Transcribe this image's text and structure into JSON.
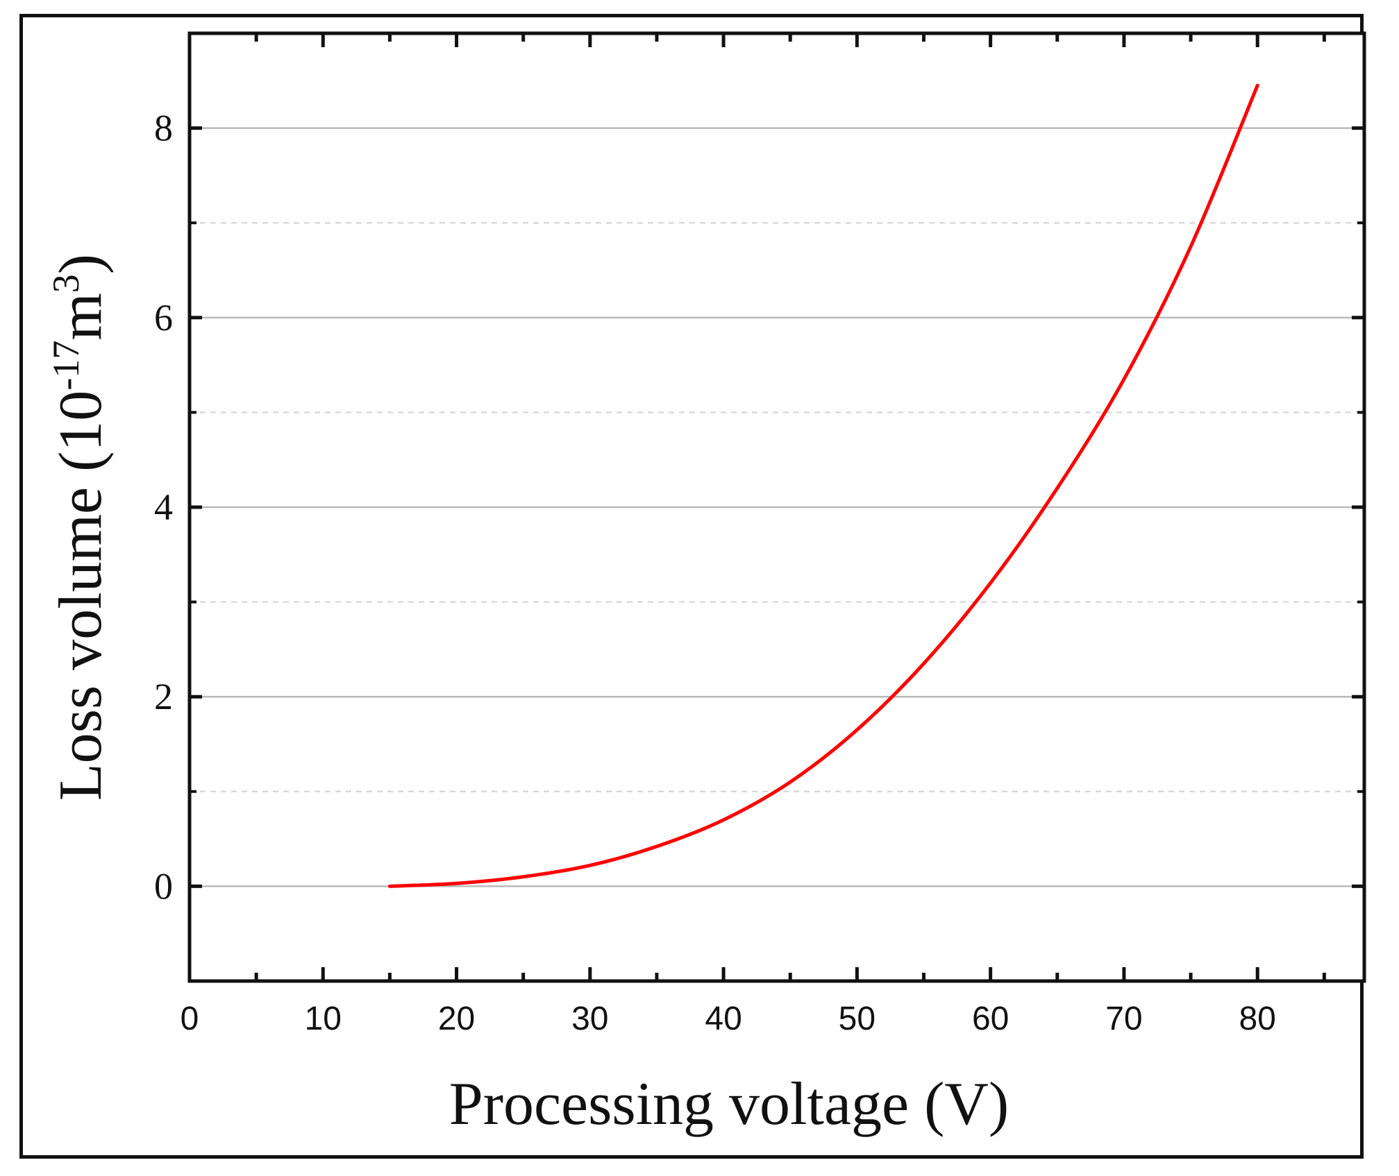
{
  "chart_data": {
    "type": "line",
    "title": "",
    "xlabel": "Processing voltage (V)",
    "ylabel": {
      "prefix": "Loss volume (10",
      "exponent1": "-17",
      "unit": "m",
      "exponent2": "3",
      "suffix": ")"
    },
    "xlim": [
      0,
      88
    ],
    "ylim": [
      -1,
      9
    ],
    "xticks": [
      0,
      10,
      20,
      30,
      40,
      50,
      60,
      70,
      80
    ],
    "yticks": [
      0,
      2,
      4,
      6,
      8
    ],
    "yminor_gridlines": [
      1,
      3,
      5,
      7
    ],
    "grid": true,
    "series": [
      {
        "name": "Loss volume",
        "color": "#ff0000",
        "x": [
          15,
          20,
          25,
          30,
          35,
          40,
          45,
          50,
          55,
          60,
          65,
          70,
          75,
          80
        ],
        "y": [
          0.0,
          0.03,
          0.1,
          0.22,
          0.42,
          0.7,
          1.1,
          1.65,
          2.35,
          3.2,
          4.2,
          5.35,
          6.75,
          8.45
        ]
      }
    ]
  }
}
